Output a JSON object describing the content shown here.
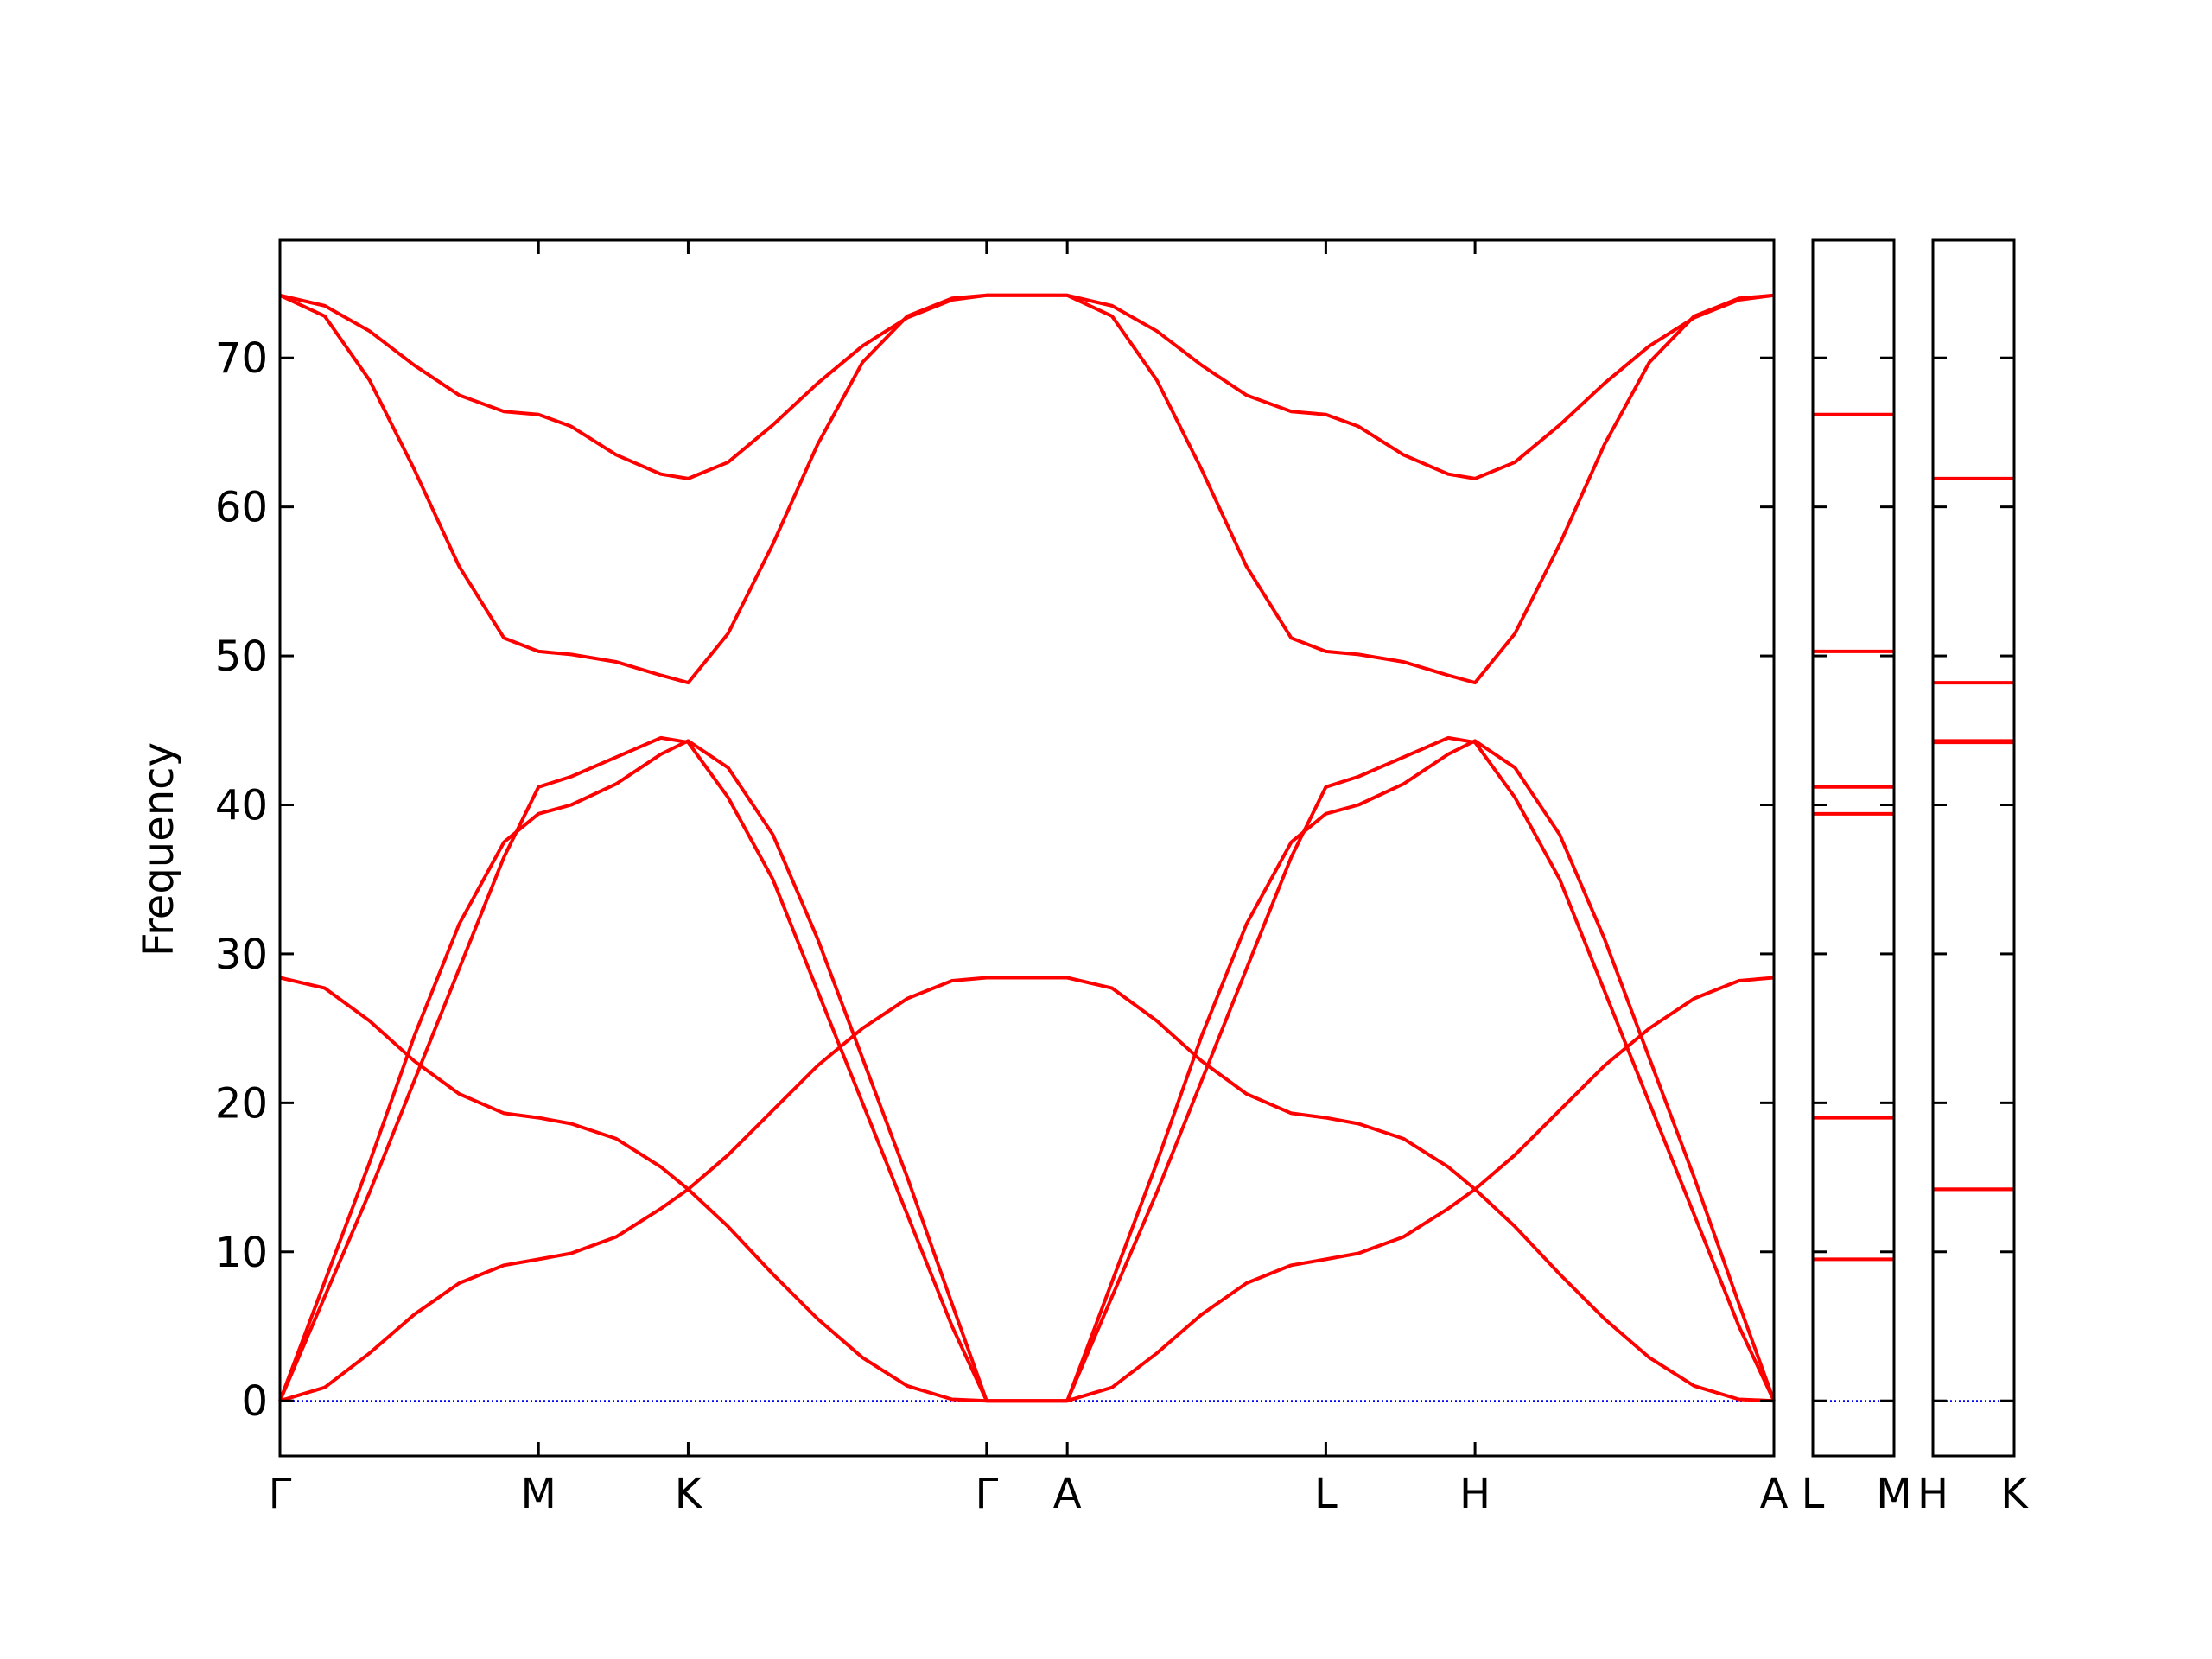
{
  "chart_data": [
    {
      "type": "line",
      "ylabel": "Frequency",
      "x": [
        0,
        0.1,
        0.2,
        0.3,
        0.4,
        0.5,
        0.577,
        0.65,
        0.75,
        0.85,
        0.911,
        1.0,
        1.1,
        1.2,
        1.3,
        1.4,
        1.5,
        1.577,
        1.757,
        1.857,
        1.957,
        2.057,
        2.157,
        2.257,
        2.334,
        2.407,
        2.507,
        2.607,
        2.667,
        2.756,
        2.856,
        2.956,
        3.056,
        3.156,
        3.256,
        3.334
      ],
      "xlim": [
        0,
        3.334
      ],
      "xticks": [
        {
          "value": 0,
          "label": "Γ"
        },
        {
          "value": 0.577,
          "label": "M"
        },
        {
          "value": 0.911,
          "label": "K"
        },
        {
          "value": 1.577,
          "label": "Γ"
        },
        {
          "value": 1.757,
          "label": "A"
        },
        {
          "value": 2.334,
          "label": "L"
        },
        {
          "value": 2.667,
          "label": "H"
        },
        {
          "value": 3.334,
          "label": "A"
        }
      ],
      "ylim": [
        -3.7,
        77.9
      ],
      "yticks": [
        0,
        10,
        20,
        30,
        40,
        50,
        60,
        70
      ],
      "show_ytick_labels": true,
      "hline": 0,
      "hline_color": "#0000ff",
      "series": [
        {
          "color": "#ff0000",
          "values": [
            0,
            0.9,
            3.2,
            5.8,
            7.9,
            9.1,
            9.5,
            9.9,
            11.0,
            12.9,
            14.2,
            16.5,
            19.5,
            22.5,
            25.0,
            27.0,
            28.2,
            28.4,
            28.4,
            27.7,
            25.5,
            22.8,
            20.6,
            19.3,
            19.0,
            18.6,
            17.6,
            15.7,
            14.2,
            11.7,
            8.5,
            5.5,
            2.9,
            1.0,
            0.1,
            0
          ]
        },
        {
          "color": "#ff0000",
          "values": [
            28.4,
            27.7,
            25.5,
            22.8,
            20.6,
            19.3,
            19.0,
            18.6,
            17.6,
            15.7,
            14.2,
            11.7,
            8.5,
            5.5,
            2.9,
            1.0,
            0.1,
            0,
            0,
            0.9,
            3.2,
            5.8,
            7.9,
            9.1,
            9.5,
            9.9,
            11.0,
            12.9,
            14.2,
            16.5,
            19.5,
            22.5,
            25.0,
            27.0,
            28.2,
            28.4
          ]
        },
        {
          "color": "#ff0000",
          "values": [
            0,
            7,
            14,
            21.5,
            29,
            36.5,
            41.2,
            41.9,
            43.2,
            44.5,
            44.2,
            40.5,
            35,
            27.5,
            20,
            12.5,
            5,
            0,
            0,
            7,
            14,
            21.5,
            29,
            36.5,
            41.2,
            41.9,
            43.2,
            44.5,
            44.2,
            40.5,
            35,
            27.5,
            20,
            12.5,
            5,
            0
          ]
        },
        {
          "color": "#ff0000",
          "values": [
            0,
            8,
            16,
            24.5,
            32,
            37.5,
            39.4,
            40.0,
            41.4,
            43.4,
            44.3,
            42.5,
            38,
            31,
            23,
            15,
            6.5,
            0,
            0,
            8,
            16,
            24.5,
            32,
            37.5,
            39.4,
            40.0,
            41.4,
            43.4,
            44.3,
            42.5,
            38,
            31,
            23,
            15,
            6.5,
            0
          ]
        },
        {
          "color": "#ff0000",
          "values": [
            74.2,
            73.5,
            71.8,
            69.5,
            67.5,
            66.4,
            66.2,
            65.4,
            63.5,
            62.2,
            61.9,
            63.0,
            65.5,
            68.3,
            70.8,
            72.7,
            73.9,
            74.2,
            74.2,
            73.5,
            71.8,
            69.5,
            67.5,
            66.4,
            66.2,
            65.4,
            63.5,
            62.2,
            61.9,
            63.0,
            65.5,
            68.3,
            70.8,
            72.7,
            73.9,
            74.2
          ]
        },
        {
          "color": "#ff0000",
          "values": [
            74.2,
            72.8,
            68.5,
            62.5,
            56,
            51.2,
            50.3,
            50.1,
            49.6,
            48.7,
            48.2,
            51.5,
            57.5,
            64.2,
            69.7,
            72.8,
            74.0,
            74.2,
            74.2,
            72.8,
            68.5,
            62.5,
            56,
            51.2,
            50.3,
            50.1,
            49.6,
            48.7,
            48.2,
            51.5,
            57.5,
            64.2,
            69.7,
            72.8,
            74.0,
            74.2
          ]
        }
      ]
    },
    {
      "type": "line",
      "x": [
        0,
        0.18
      ],
      "xlim": [
        0,
        0.18
      ],
      "xticks": [
        {
          "value": 0,
          "label": "L"
        },
        {
          "value": 0.18,
          "label": "M"
        }
      ],
      "ylim": [
        -3.7,
        77.9
      ],
      "yticks": [
        0,
        10,
        20,
        30,
        40,
        50,
        60,
        70
      ],
      "show_ytick_labels": false,
      "hline": 0,
      "hline_color": "#0000ff",
      "series": [
        {
          "color": "#ff0000",
          "values": [
            9.5,
            9.5
          ]
        },
        {
          "color": "#ff0000",
          "values": [
            19.0,
            19.0
          ]
        },
        {
          "color": "#ff0000",
          "values": [
            41.2,
            41.2
          ]
        },
        {
          "color": "#ff0000",
          "values": [
            39.4,
            39.4
          ]
        },
        {
          "color": "#ff0000",
          "values": [
            66.2,
            66.2
          ]
        },
        {
          "color": "#ff0000",
          "values": [
            50.3,
            50.3
          ]
        }
      ]
    },
    {
      "type": "line",
      "x": [
        0,
        0.18
      ],
      "xlim": [
        0,
        0.18
      ],
      "xticks": [
        {
          "value": 0,
          "label": "H"
        },
        {
          "value": 0.18,
          "label": "K"
        }
      ],
      "ylim": [
        -3.7,
        77.9
      ],
      "yticks": [
        0,
        10,
        20,
        30,
        40,
        50,
        60,
        70
      ],
      "show_ytick_labels": false,
      "hline": 0,
      "hline_color": "#0000ff",
      "series": [
        {
          "color": "#ff0000",
          "values": [
            14.2,
            14.2
          ]
        },
        {
          "color": "#ff0000",
          "values": [
            14.2,
            14.2
          ]
        },
        {
          "color": "#ff0000",
          "values": [
            44.2,
            44.2
          ]
        },
        {
          "color": "#ff0000",
          "values": [
            44.3,
            44.3
          ]
        },
        {
          "color": "#ff0000",
          "values": [
            61.9,
            61.9
          ]
        },
        {
          "color": "#ff0000",
          "values": [
            48.2,
            48.2
          ]
        }
      ]
    }
  ]
}
